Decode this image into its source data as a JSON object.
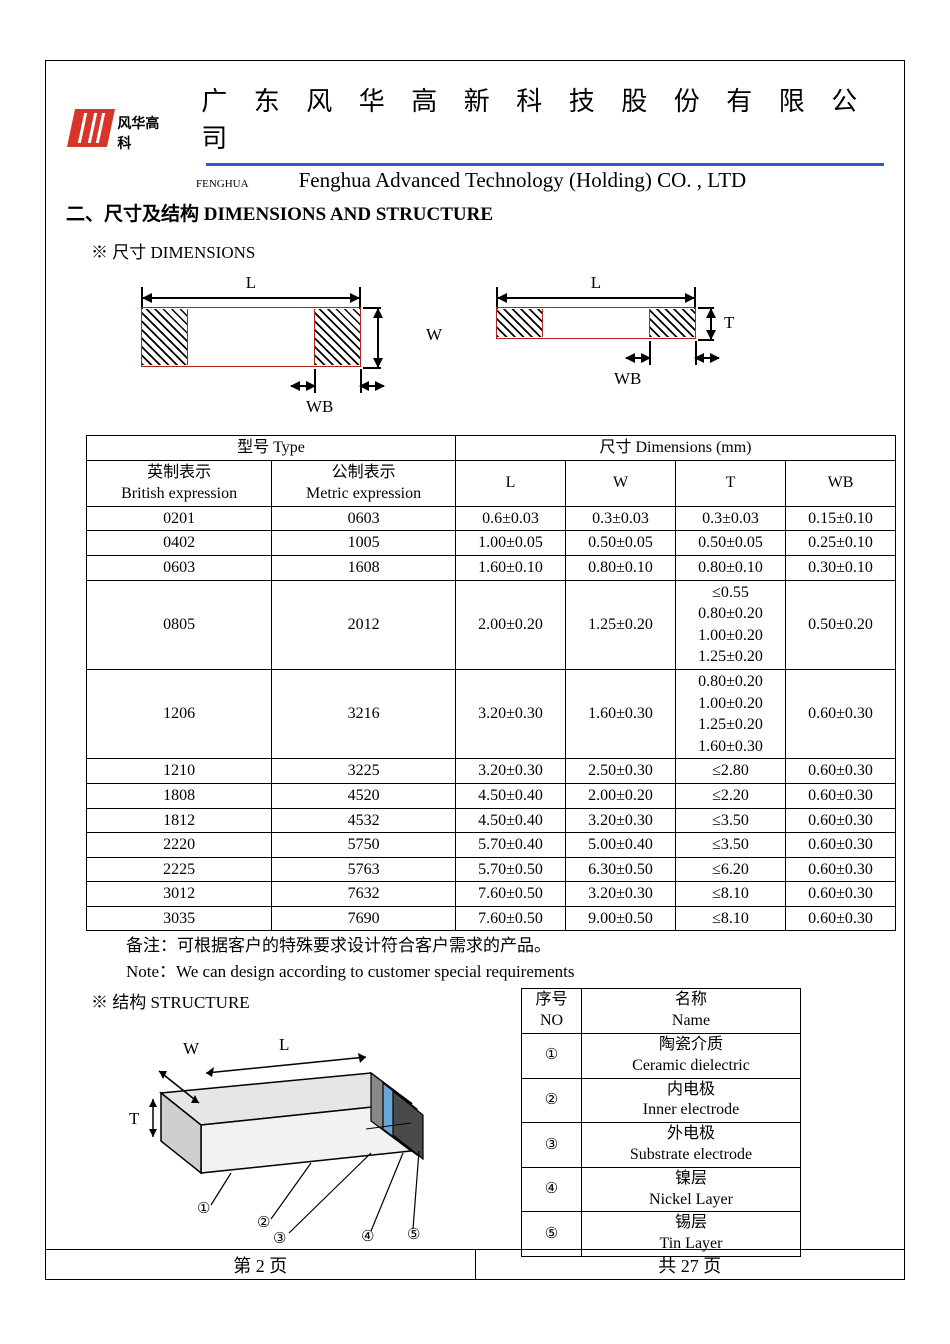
{
  "header": {
    "logo_cn": "风华高科",
    "title_cn": "广 东 风 华 高 新 科 技 股 份 有 限 公 司",
    "fenghua_small": "FENGHUA",
    "title_en": "Fenghua Advanced Technology (Holding) CO. , LTD",
    "blue_rule_color": "#3a56cc",
    "logo_color": "#d8352a"
  },
  "sections": {
    "main_head": "二、尺寸及结构   DIMENSIONS AND STRUCTURE",
    "dims_label": "※ 尺寸 DIMENSIONS",
    "struct_label": "※ 结构 STRUCTURE"
  },
  "fig": {
    "L": "L",
    "W": "W",
    "T": "T",
    "WB": "WB",
    "rect_border_color": "#b0231c"
  },
  "dims_table": {
    "head_type": "型号 Type",
    "head_dims": "尺寸     Dimensions     (mm)",
    "head_brit_cn": "英制表示",
    "head_brit_en": "British expression",
    "head_metr_cn": "公制表示",
    "head_metr_en": "Metric expression",
    "col_L": "L",
    "col_W": "W",
    "col_T": "T",
    "col_WB": "WB",
    "rows": [
      {
        "b": "0201",
        "m": "0603",
        "L": "0.6±0.03",
        "W": "0.3±0.03",
        "T": "0.3±0.03",
        "WB": "0.15±0.10"
      },
      {
        "b": "0402",
        "m": "1005",
        "L": "1.00±0.05",
        "W": "0.50±0.05",
        "T": "0.50±0.05",
        "WB": "0.25±0.10"
      },
      {
        "b": "0603",
        "m": "1608",
        "L": "1.60±0.10",
        "W": "0.80±0.10",
        "T": "0.80±0.10",
        "WB": "0.30±0.10"
      },
      {
        "b": "0805",
        "m": "2012",
        "L": "2.00±0.20",
        "W": "1.25±0.20",
        "T": [
          "≤0.55",
          "0.80±0.20",
          "1.00±0.20",
          "1.25±0.20"
        ],
        "WB": "0.50±0.20"
      },
      {
        "b": "1206",
        "m": "3216",
        "L": "3.20±0.30",
        "W": "1.60±0.30",
        "T": [
          "0.80±0.20",
          "1.00±0.20",
          "1.25±0.20",
          "1.60±0.30"
        ],
        "WB": "0.60±0.30"
      },
      {
        "b": "1210",
        "m": "3225",
        "L": "3.20±0.30",
        "W": "2.50±0.30",
        "T": "≤2.80",
        "WB": "0.60±0.30"
      },
      {
        "b": "1808",
        "m": "4520",
        "L": "4.50±0.40",
        "W": "2.00±0.20",
        "T": "≤2.20",
        "WB": "0.60±0.30"
      },
      {
        "b": "1812",
        "m": "4532",
        "L": "4.50±0.40",
        "W": "3.20±0.30",
        "T": "≤3.50",
        "WB": "0.60±0.30"
      },
      {
        "b": "2220",
        "m": "5750",
        "L": "5.70±0.40",
        "W": "5.00±0.40",
        "T": "≤3.50",
        "WB": "0.60±0.30"
      },
      {
        "b": "2225",
        "m": "5763",
        "L": "5.70±0.50",
        "W": "6.30±0.50",
        "T": "≤6.20",
        "WB": "0.60±0.30"
      },
      {
        "b": "3012",
        "m": "7632",
        "L": "7.60±0.50",
        "W": "3.20±0.30",
        "T": "≤8.10",
        "WB": "0.60±0.30"
      },
      {
        "b": "3035",
        "m": "7690",
        "L": "7.60±0.50",
        "W": "9.00±0.50",
        "T": "≤8.10",
        "WB": "0.60±0.30"
      }
    ]
  },
  "notes": {
    "cn": "备注：可根据客户的特殊要求设计符合客户需求的产品。",
    "en": "Note：We can design according to customer special requirements"
  },
  "struct_table": {
    "head_no_cn": "序号",
    "head_no_en": "NO",
    "head_name_cn": "名称",
    "head_name_en": "Name",
    "rows": [
      {
        "no": "①",
        "cn": "陶瓷介质",
        "en": "Ceramic   dielectric"
      },
      {
        "no": "②",
        "cn": "内电极",
        "en": "Inner   electrode"
      },
      {
        "no": "③",
        "cn": "外电极",
        "en": "Substrate   electrode"
      },
      {
        "no": "④",
        "cn": "镍层",
        "en": "Nickel Layer"
      },
      {
        "no": "⑤",
        "cn": "锡层",
        "en": "Tin Layer"
      }
    ]
  },
  "struct_fig": {
    "W": "W",
    "L": "L",
    "T": "T",
    "l1": "①",
    "l2": "②",
    "l3": "③",
    "l4": "④",
    "l5": "⑤",
    "body_color": "#e6e6e6",
    "end_color": "#888888",
    "nickel_color": "#6aa7d6",
    "tin_color": "#4a4a4a"
  },
  "footer": {
    "left": "第   2   页",
    "right": "共  27  页"
  }
}
